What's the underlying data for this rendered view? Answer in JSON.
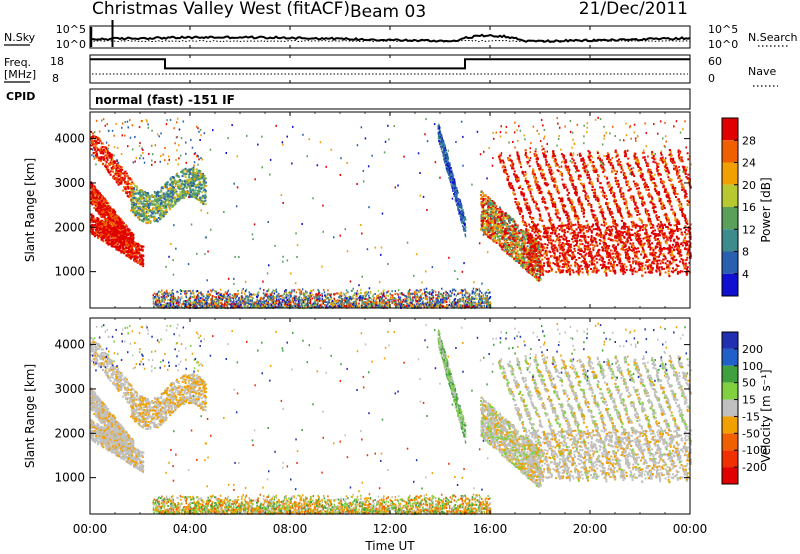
{
  "header": {
    "station": "Christmas Valley West (fitACF)",
    "beam": "Beam 03",
    "date": "21/Dec/2011",
    "mode": "normal (fast) -151 IF"
  },
  "chart_data": [
    {
      "type": "line",
      "panel": "noise",
      "series": [
        {
          "name": "N.Sky",
          "style": "solid"
        },
        {
          "name": "N.Search",
          "style": "dotted"
        }
      ],
      "left_ticks": [
        "10^5",
        "10^0"
      ],
      "right_ticks": [
        "10^5",
        "10^0"
      ],
      "left_label": "N.Sky",
      "right_label": "N.Search"
    },
    {
      "type": "line",
      "panel": "frequency",
      "series": [
        {
          "name": "Freq.",
          "style": "solid",
          "points": [
            [
              0,
              16.5
            ],
            [
              3.0,
              16.5
            ],
            [
              3.0,
              13.2
            ],
            [
              15.0,
              13.2
            ],
            [
              15.0,
              16.5
            ],
            [
              24,
              16.5
            ]
          ]
        },
        {
          "name": "Nave",
          "style": "dotted"
        }
      ],
      "left_ticks": [
        18,
        8
      ],
      "right_ticks": [
        60,
        0
      ],
      "left_label_line1": "Freq.",
      "left_label_line2": "[MHz]",
      "right_label": "Nave",
      "cpid_label": "CPID"
    },
    {
      "type": "heatmap",
      "panel": "power",
      "ylabel": "Slant Range [km]",
      "ylim": [
        180,
        4600
      ],
      "yticks": [
        1000,
        2000,
        3000,
        4000
      ],
      "colorbar_label": "Power [dB]",
      "colorbar_ticks": [
        "4",
        "8",
        "12",
        "16",
        "20",
        "24",
        "28"
      ],
      "colors": [
        "#1010d0",
        "#2a5fb0",
        "#3d8b8b",
        "#5aa05a",
        "#b8c830",
        "#f0a000",
        "#f06000",
        "#e00000"
      ]
    },
    {
      "type": "heatmap",
      "panel": "velocity",
      "ylabel": "Slant Range [km]",
      "ylim": [
        180,
        4600
      ],
      "yticks": [
        1000,
        2000,
        3000,
        4000
      ],
      "colorbar_label": "Velocity [m s⁻¹]",
      "colorbar_ticks": [
        "200",
        "100",
        "50",
        "15",
        "-15",
        "-50",
        "-100",
        "-200"
      ],
      "colors": [
        "#2030b0",
        "#2060c8",
        "#40a040",
        "#80d040",
        "#c0c0c0",
        "#f0a000",
        "#f06000",
        "#f03000",
        "#e00000"
      ],
      "xlabel": "Time UT",
      "xticks": [
        "00:00",
        "04:00",
        "08:00",
        "12:00",
        "16:00",
        "20:00",
        "00:00"
      ]
    }
  ]
}
